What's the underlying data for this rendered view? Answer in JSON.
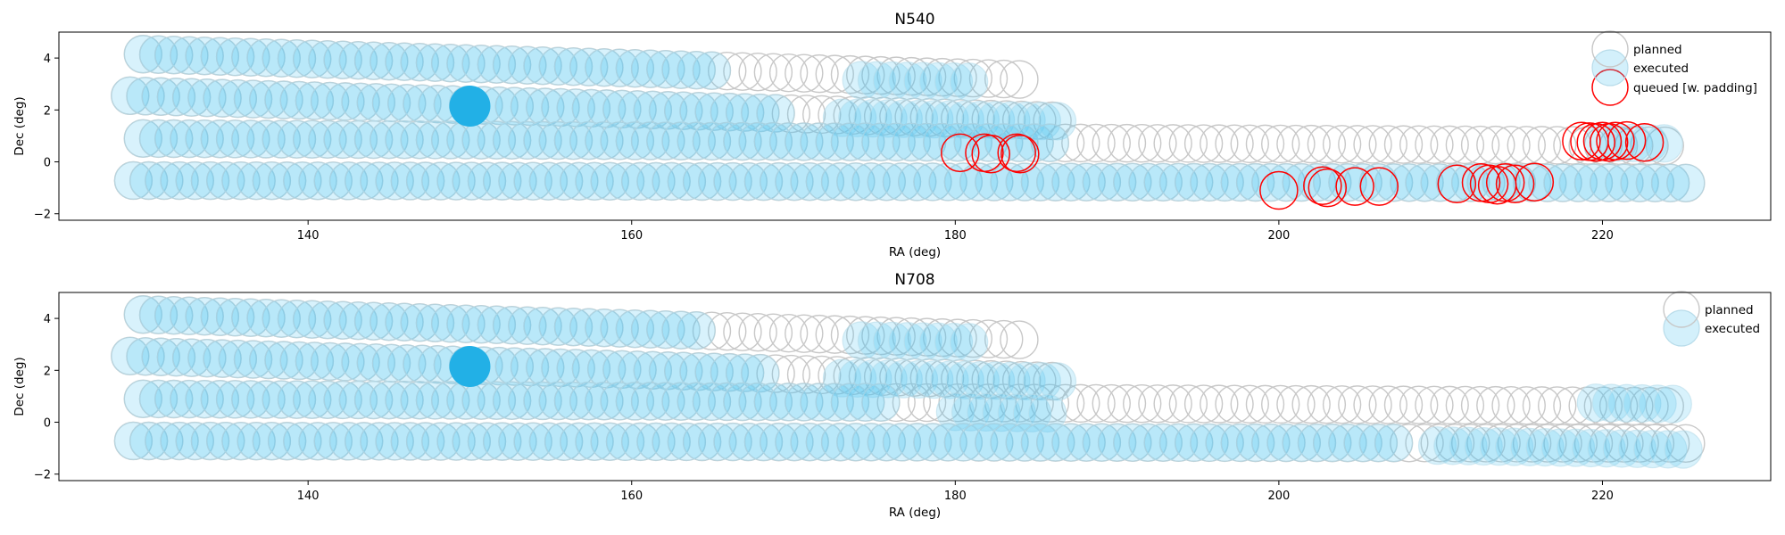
{
  "chart_data": [
    {
      "type": "scatter",
      "title": "N540",
      "xlabel": "RA (deg)",
      "ylabel": "Dec (deg)",
      "xlim": [
        124.6,
        230.4
      ],
      "ylim": [
        -2.25,
        5.0
      ],
      "xticks": [
        140,
        160,
        180,
        200,
        220
      ],
      "yticks": [
        -2,
        0,
        2,
        4
      ],
      "legend_position": "top-right",
      "series": [
        {
          "name": "planned",
          "color": "#c8c8c8",
          "rows": [
            {
              "dec": 4.15,
              "ra_start": 129.8,
              "ra_end": 184.8,
              "step": 0.95,
              "dec_slope": -0.018
            },
            {
              "dec": 2.55,
              "ra_start": 129.0,
              "ra_end": 186.8,
              "step": 0.95,
              "dec_slope": -0.017
            },
            {
              "dec": 0.9,
              "ra_start": 129.8,
              "ra_end": 224.5,
              "step": 0.95,
              "dec_slope": -0.003
            },
            {
              "dec": -0.72,
              "ra_start": 129.2,
              "ra_end": 225.3,
              "step": 0.95,
              "dec_slope": -0.001
            }
          ]
        },
        {
          "name": "executed",
          "color": "#4fc3f0",
          "segments": [
            [
              4.15,
              129.8,
              165.4
            ],
            [
              3.15,
              174.2,
              181.6
            ],
            [
              2.55,
              129.0,
              169.0
            ],
            [
              1.7,
              173.0,
              186.6
            ],
            [
              0.9,
              129.8,
              186.0
            ],
            [
              0.75,
              220.0,
              224.5
            ],
            [
              -0.72,
              129.2,
              225.3
            ]
          ],
          "highlight": {
            "ra": 150.0,
            "dec": 2.15,
            "color": "#22b0e6"
          }
        },
        {
          "name": "queued [w. padding]",
          "color": "#ff0000",
          "points": [
            [
              180.3,
              0.35
            ],
            [
              181.8,
              0.35
            ],
            [
              182.2,
              0.3
            ],
            [
              183.8,
              0.35
            ],
            [
              184.0,
              0.3
            ],
            [
              200.0,
              -1.1
            ],
            [
              202.7,
              -0.92
            ],
            [
              203.0,
              -1.0
            ],
            [
              204.7,
              -0.95
            ],
            [
              206.2,
              -0.95
            ],
            [
              211.0,
              -0.85
            ],
            [
              212.5,
              -0.8
            ],
            [
              213.0,
              -0.85
            ],
            [
              213.5,
              -0.9
            ],
            [
              214.0,
              -0.8
            ],
            [
              214.6,
              -0.85
            ],
            [
              215.8,
              -0.78
            ],
            [
              218.7,
              0.8
            ],
            [
              219.2,
              0.78
            ],
            [
              219.6,
              0.75
            ],
            [
              220.0,
              0.8
            ],
            [
              220.4,
              0.75
            ],
            [
              220.8,
              0.8
            ],
            [
              221.5,
              0.82
            ],
            [
              222.6,
              0.75
            ]
          ]
        }
      ]
    },
    {
      "type": "scatter",
      "title": "N708",
      "xlabel": "RA (deg)",
      "ylabel": "Dec (deg)",
      "xlim": [
        124.6,
        230.4
      ],
      "ylim": [
        -2.25,
        5.0
      ],
      "xticks": [
        140,
        160,
        180,
        200,
        220
      ],
      "yticks": [
        -2,
        0,
        2,
        4
      ],
      "legend_position": "top-right",
      "series": [
        {
          "name": "planned",
          "color": "#c8c8c8",
          "rows": [
            {
              "dec": 4.15,
              "ra_start": 129.8,
              "ra_end": 184.8,
              "step": 0.95,
              "dec_slope": -0.018
            },
            {
              "dec": 2.55,
              "ra_start": 129.0,
              "ra_end": 186.8,
              "step": 0.95,
              "dec_slope": -0.017
            },
            {
              "dec": 0.9,
              "ra_start": 129.8,
              "ra_end": 224.5,
              "step": 0.95,
              "dec_slope": -0.003
            },
            {
              "dec": -0.72,
              "ra_start": 129.2,
              "ra_end": 225.3,
              "step": 0.95,
              "dec_slope": -0.001
            }
          ]
        },
        {
          "name": "executed",
          "color": "#4fc3f0",
          "segments": [
            [
              4.15,
              129.8,
              164.0
            ],
            [
              3.15,
              174.2,
              181.6
            ],
            [
              2.55,
              129.0,
              168.5
            ],
            [
              1.7,
              173.0,
              186.6
            ],
            [
              0.9,
              129.8,
              176.0
            ],
            [
              0.4,
              180.0,
              186.0
            ],
            [
              0.75,
              219.6,
              224.5
            ],
            [
              -0.72,
              129.2,
              207.6
            ],
            [
              -0.9,
              209.8,
              225.3
            ]
          ],
          "highlight": {
            "ra": 150.0,
            "dec": 2.15,
            "color": "#22b0e6"
          }
        }
      ]
    }
  ]
}
